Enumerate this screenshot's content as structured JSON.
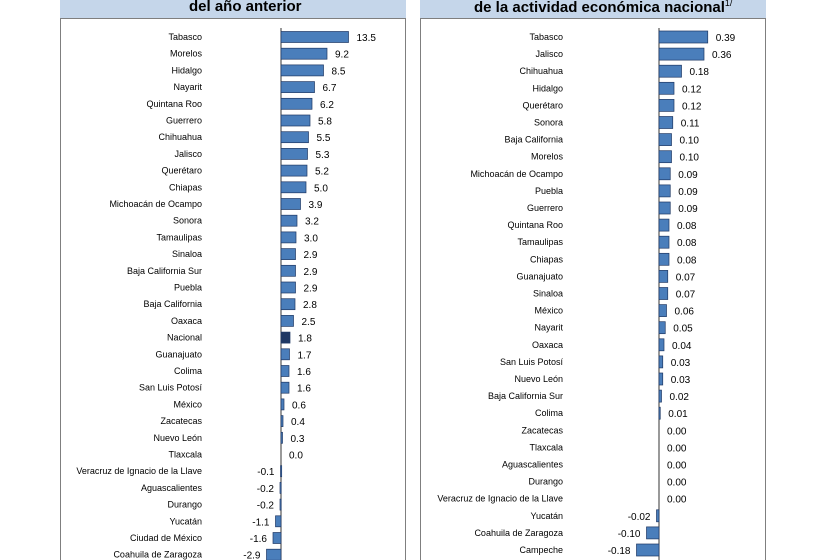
{
  "chart_data": [
    {
      "type": "bar",
      "orientation": "horizontal",
      "title": "del año anterior",
      "highlight_category": "Nacional",
      "categories": [
        "Tabasco",
        "Morelos",
        "Hidalgo",
        "Nayarit",
        "Quintana Roo",
        "Guerrero",
        "Chihuahua",
        "Jalisco",
        "Querétaro",
        "Chiapas",
        "Michoacán de Ocampo",
        "Sonora",
        "Tamaulipas",
        "Sinaloa",
        "Baja California Sur",
        "Puebla",
        "Baja California",
        "Oaxaca",
        "Nacional",
        "Guanajuato",
        "Colima",
        "San Luis Potosí",
        "México",
        "Zacatecas",
        "Nuevo León",
        "Tlaxcala",
        "Veracruz de Ignacio de la Llave",
        "Aguascalientes",
        "Durango",
        "Yucatán",
        "Ciudad de México",
        "Coahuila de Zaragoza"
      ],
      "values": [
        13.5,
        9.2,
        8.5,
        6.7,
        6.2,
        5.8,
        5.5,
        5.3,
        5.2,
        5.0,
        3.9,
        3.2,
        3.0,
        2.9,
        2.9,
        2.9,
        2.8,
        2.5,
        1.8,
        1.7,
        1.6,
        1.6,
        0.6,
        0.4,
        0.3,
        0.0,
        -0.1,
        -0.2,
        -0.2,
        -1.1,
        -1.6,
        -2.9
      ],
      "labels": [
        "13.5",
        "9.2",
        "8.5",
        "6.7",
        "6.2",
        "5.8",
        "5.5",
        "5.3",
        "5.2",
        "5.0",
        "3.9",
        "3.2",
        "3.0",
        "2.9",
        "2.9",
        "2.9",
        "2.8",
        "2.5",
        "1.8",
        "1.7",
        "1.6",
        "1.6",
        "0.6",
        "0.4",
        "0.3",
        "0.0",
        "-0.1",
        "-0.2",
        "-0.2",
        "-1.1",
        "-1.6",
        "-2.9"
      ],
      "colors": {
        "bar": "#4a7ebb",
        "highlight": "#1f3864",
        "bar_edge": "#1f3864"
      }
    },
    {
      "type": "bar",
      "orientation": "horizontal",
      "title": "de la actividad económica nacional",
      "title_superscript": "1/",
      "categories": [
        "Tabasco",
        "Jalisco",
        "Chihuahua",
        "Hidalgo",
        "Querétaro",
        "Sonora",
        "Baja California",
        "Morelos",
        "Michoacán de Ocampo",
        "Puebla",
        "Guerrero",
        "Quintana Roo",
        "Tamaulipas",
        "Chiapas",
        "Guanajuato",
        "Sinaloa",
        "México",
        "Nayarit",
        "Oaxaca",
        "San Luis Potosí",
        "Nuevo León",
        "Baja California Sur",
        "Colima",
        "Zacatecas",
        "Tlaxcala",
        "Aguascalientes",
        "Durango",
        "Veracruz de Ignacio de la Llave",
        "Yucatán",
        "Coahuila de Zaragoza",
        "Campeche"
      ],
      "values": [
        0.39,
        0.36,
        0.18,
        0.12,
        0.12,
        0.11,
        0.1,
        0.1,
        0.09,
        0.09,
        0.09,
        0.08,
        0.08,
        0.08,
        0.07,
        0.07,
        0.06,
        0.05,
        0.04,
        0.03,
        0.03,
        0.02,
        0.01,
        0.0,
        0.0,
        0.0,
        0.0,
        0.0,
        -0.02,
        -0.1,
        -0.18
      ],
      "labels": [
        "0.39",
        "0.36",
        "0.18",
        "0.12",
        "0.12",
        "0.11",
        "0.10",
        "0.10",
        "0.09",
        "0.09",
        "0.09",
        "0.08",
        "0.08",
        "0.08",
        "0.07",
        "0.07",
        "0.06",
        "0.05",
        "0.04",
        "0.03",
        "0.03",
        "0.02",
        "0.01",
        "0.00",
        "0.00",
        "0.00",
        "0.00",
        "0.00",
        "-0.02",
        "-0.10",
        "-0.18"
      ],
      "colors": {
        "bar": "#4a7ebb",
        "bar_edge": "#1f3864"
      }
    }
  ]
}
